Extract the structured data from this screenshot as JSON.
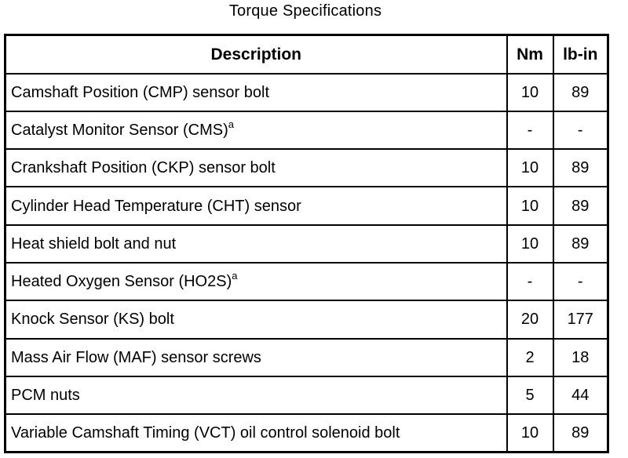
{
  "title": "Torque Specifications",
  "table": {
    "headers": {
      "description": "Description",
      "nm": "Nm",
      "lbin": "lb-in"
    },
    "rows": [
      {
        "description": "Camshaft Position (CMP) sensor bolt",
        "sup": "",
        "nm": "10",
        "lbin": "89"
      },
      {
        "description": "Catalyst Monitor Sensor (CMS)",
        "sup": "a",
        "nm": "-",
        "lbin": "-"
      },
      {
        "description": "Crankshaft Position (CKP) sensor bolt",
        "sup": "",
        "nm": "10",
        "lbin": "89"
      },
      {
        "description": "Cylinder Head Temperature (CHT) sensor",
        "sup": "",
        "nm": "10",
        "lbin": "89"
      },
      {
        "description": "Heat shield bolt and nut",
        "sup": "",
        "nm": "10",
        "lbin": "89"
      },
      {
        "description": "Heated Oxygen Sensor (HO2S)",
        "sup": "a",
        "nm": "-",
        "lbin": "-"
      },
      {
        "description": "Knock Sensor (KS) bolt",
        "sup": "",
        "nm": "20",
        "lbin": "177"
      },
      {
        "description": "Mass Air Flow (MAF) sensor screws",
        "sup": "",
        "nm": "2",
        "lbin": "18"
      },
      {
        "description": "PCM nuts",
        "sup": "",
        "nm": "5",
        "lbin": "44"
      },
      {
        "description": "Variable Camshaft Timing (VCT) oil control solenoid bolt",
        "sup": "",
        "nm": "10",
        "lbin": "89"
      }
    ]
  }
}
